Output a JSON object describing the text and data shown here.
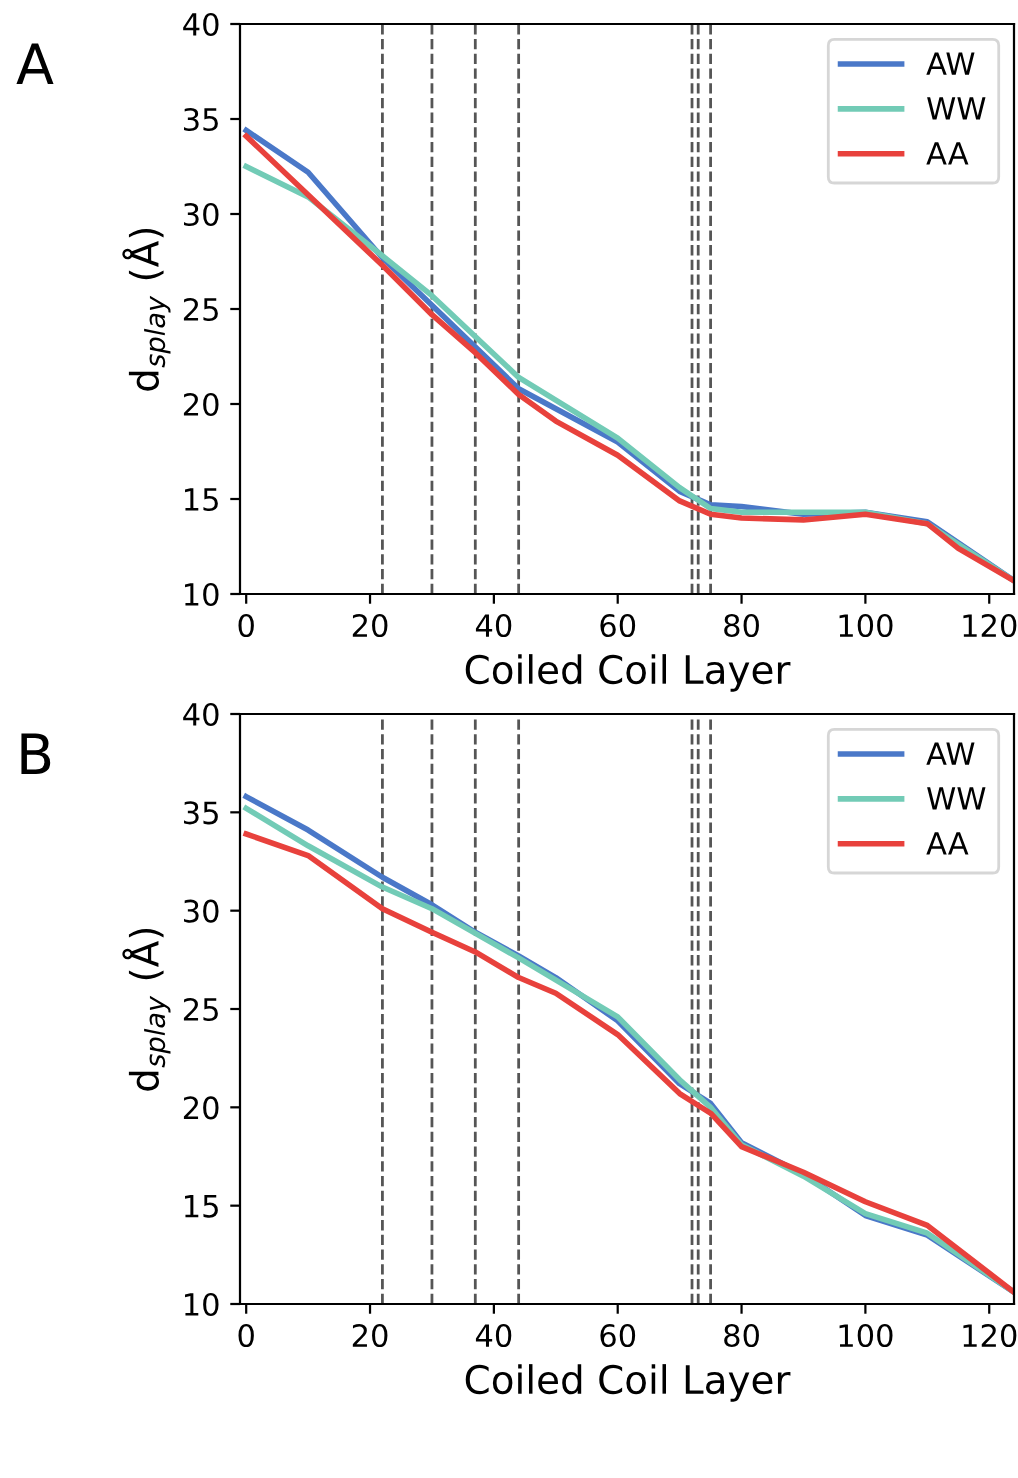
{
  "chart_data": [
    {
      "type": "line",
      "annotations": [
        "A"
      ],
      "xlabel": "Coiled Coil Layer",
      "ylabel": "d$_{splay}$ (Å)",
      "xlim": [
        -1,
        124
      ],
      "ylim": [
        10,
        40
      ],
      "xticks": [
        0,
        20,
        40,
        60,
        80,
        100,
        120
      ],
      "yticks": [
        10,
        15,
        20,
        25,
        30,
        35,
        40
      ],
      "legend": "top right",
      "grid": false,
      "ref_lines": [
        {
          "axis": "x",
          "value": 22,
          "line_style": "dashed",
          "color": "#555555"
        },
        {
          "axis": "x",
          "value": 30,
          "line_style": "dashed",
          "color": "#555555"
        },
        {
          "axis": "x",
          "value": 37,
          "line_style": "dashed",
          "color": "#555555"
        },
        {
          "axis": "x",
          "value": 44,
          "line_style": "dashed",
          "color": "#555555"
        },
        {
          "axis": "x",
          "value": 72,
          "line_style": "dashed",
          "color": "#555555"
        },
        {
          "axis": "x",
          "value": 73,
          "line_style": "dashed",
          "color": "#555555"
        },
        {
          "axis": "x",
          "value": 75,
          "line_style": "dashed",
          "color": "#555555"
        }
      ],
      "series": [
        {
          "name": "AW",
          "color": "#4a78c8",
          "x": [
            0,
            10,
            22,
            30,
            44,
            60,
            70,
            75,
            80,
            90,
            100,
            110,
            124
          ],
          "values": [
            34.4,
            32.2,
            27.7,
            25.2,
            20.8,
            18.0,
            15.4,
            14.7,
            14.6,
            14.2,
            14.3,
            13.8,
            10.7
          ]
        },
        {
          "name": "WW",
          "color": "#72cbb6",
          "x": [
            0,
            10,
            22,
            30,
            44,
            60,
            70,
            75,
            80,
            90,
            100,
            110,
            124
          ],
          "values": [
            32.5,
            30.9,
            27.8,
            25.7,
            21.4,
            18.2,
            15.6,
            14.5,
            14.3,
            14.3,
            14.3,
            13.7,
            10.7
          ]
        },
        {
          "name": "AA",
          "color": "#e8413c",
          "x": [
            0,
            22,
            30,
            37,
            44,
            50,
            60,
            70,
            75,
            80,
            90,
            100,
            110,
            115,
            124
          ],
          "values": [
            34.1,
            27.3,
            24.7,
            22.7,
            20.5,
            19.1,
            17.3,
            14.9,
            14.2,
            14.0,
            13.9,
            14.2,
            13.7,
            12.4,
            10.7
          ]
        }
      ]
    },
    {
      "type": "line",
      "annotations": [
        "B"
      ],
      "xlabel": "Coiled Coil Layer",
      "ylabel": "d$_{splay}$ (Å)",
      "xlim": [
        -1,
        124
      ],
      "ylim": [
        10,
        40
      ],
      "xticks": [
        0,
        20,
        40,
        60,
        80,
        100,
        120
      ],
      "yticks": [
        10,
        15,
        20,
        25,
        30,
        35,
        40
      ],
      "legend": "top right",
      "grid": false,
      "ref_lines": [
        {
          "axis": "x",
          "value": 22,
          "line_style": "dashed",
          "color": "#555555"
        },
        {
          "axis": "x",
          "value": 30,
          "line_style": "dashed",
          "color": "#555555"
        },
        {
          "axis": "x",
          "value": 37,
          "line_style": "dashed",
          "color": "#555555"
        },
        {
          "axis": "x",
          "value": 44,
          "line_style": "dashed",
          "color": "#555555"
        },
        {
          "axis": "x",
          "value": 72,
          "line_style": "dashed",
          "color": "#555555"
        },
        {
          "axis": "x",
          "value": 73,
          "line_style": "dashed",
          "color": "#555555"
        },
        {
          "axis": "x",
          "value": 75,
          "line_style": "dashed",
          "color": "#555555"
        }
      ],
      "series": [
        {
          "name": "AW",
          "color": "#4a78c8",
          "x": [
            0,
            10,
            22,
            30,
            37,
            44,
            50,
            60,
            70,
            75,
            80,
            90,
            100,
            110,
            124
          ],
          "values": [
            35.8,
            34.1,
            31.7,
            30.3,
            28.9,
            27.7,
            26.6,
            24.4,
            21.2,
            20.2,
            18.2,
            16.6,
            14.5,
            13.5,
            10.6
          ]
        },
        {
          "name": "WW",
          "color": "#72cbb6",
          "x": [
            0,
            10,
            22,
            30,
            44,
            60,
            70,
            75,
            80,
            90,
            100,
            110,
            124
          ],
          "values": [
            35.2,
            33.3,
            31.2,
            30.1,
            27.6,
            24.6,
            21.4,
            20.0,
            18.1,
            16.5,
            14.6,
            13.6,
            10.6
          ]
        },
        {
          "name": "AA",
          "color": "#e8413c",
          "x": [
            0,
            10,
            22,
            30,
            37,
            44,
            50,
            60,
            70,
            75,
            80,
            90,
            100,
            110,
            124
          ],
          "values": [
            33.9,
            32.8,
            30.1,
            28.9,
            27.9,
            26.6,
            25.8,
            23.7,
            20.7,
            19.7,
            18.0,
            16.7,
            15.2,
            14.0,
            10.6
          ]
        }
      ]
    }
  ]
}
